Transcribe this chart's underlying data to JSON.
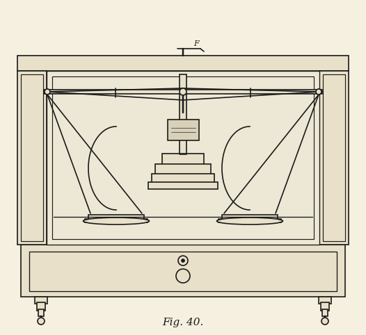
{
  "bg_color": "#f5f0e0",
  "line_color": "#1a1a1a",
  "fill_color": "#e8e0c8",
  "caption": "Fig. 40.",
  "caption_fontsize": 11,
  "figsize": [
    5.26,
    4.82
  ],
  "dpi": 100
}
